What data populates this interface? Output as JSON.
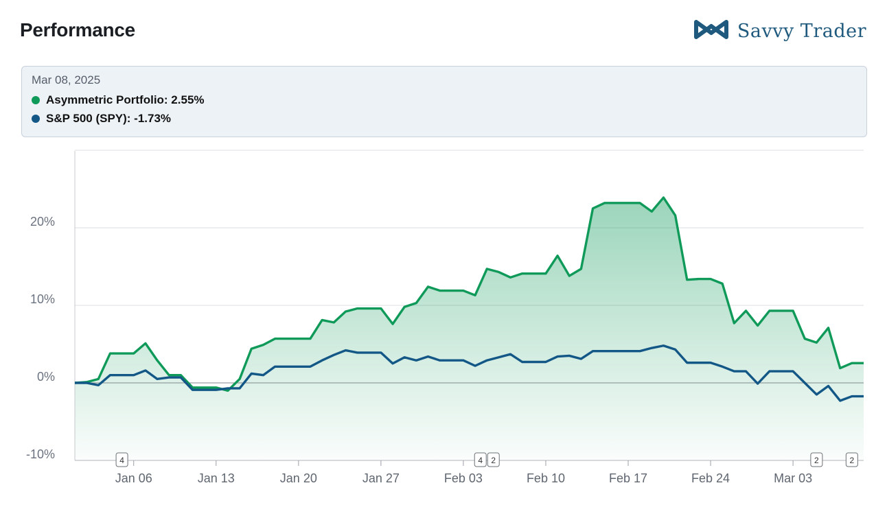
{
  "header": {
    "title": "Performance",
    "brand_name": "Savvy Trader",
    "brand_icon": "savvy-trader-logo-icon",
    "brand_color": "#1f5a7e"
  },
  "tooltip": {
    "date": "Mar 08, 2025",
    "rows": [
      {
        "label": "Asymmetric Portfolio: 2.55%",
        "color": "#109a5a"
      },
      {
        "label": "S&P 500 (SPY): -1.73%",
        "color": "#135787"
      }
    ]
  },
  "chart_data": {
    "type": "line",
    "x_start": "2025-01-01",
    "x_step_days": 1,
    "xticks": [
      "Jan 06",
      "Jan 13",
      "Jan 20",
      "Jan 27",
      "Feb 03",
      "Feb 10",
      "Feb 17",
      "Feb 24",
      "Mar 03"
    ],
    "yticks": [
      "20%",
      "10%",
      "0%",
      "-10%"
    ],
    "ylim": [
      -10,
      30
    ],
    "grid": true,
    "series": [
      {
        "name": "Asymmetric Portfolio",
        "color": "#109a5a",
        "area": true,
        "values": [
          0.0,
          0.1,
          0.5,
          3.8,
          3.8,
          3.8,
          5.1,
          2.9,
          1.0,
          1.0,
          -0.6,
          -0.6,
          -0.6,
          -1.0,
          0.5,
          4.4,
          4.9,
          5.7,
          5.7,
          5.7,
          5.7,
          8.1,
          7.8,
          9.2,
          9.6,
          9.6,
          9.6,
          7.6,
          9.8,
          10.3,
          12.4,
          11.9,
          11.9,
          11.9,
          11.3,
          14.7,
          14.3,
          13.6,
          14.1,
          14.1,
          14.1,
          16.4,
          13.8,
          14.7,
          22.5,
          23.2,
          23.2,
          23.2,
          23.2,
          22.1,
          23.9,
          21.6,
          13.3,
          13.4,
          13.4,
          12.8,
          7.7,
          9.3,
          7.4,
          9.3,
          9.3,
          9.3,
          5.7,
          5.2,
          7.1,
          1.9,
          2.55,
          2.55
        ]
      },
      {
        "name": "S&P 500 (SPY)",
        "color": "#135787",
        "area": false,
        "values": [
          0.0,
          0.0,
          -0.3,
          1.0,
          1.0,
          1.0,
          1.6,
          0.5,
          0.7,
          0.7,
          -0.9,
          -0.9,
          -0.9,
          -0.7,
          -0.7,
          1.2,
          1.0,
          2.1,
          2.1,
          2.1,
          2.1,
          2.9,
          3.6,
          4.2,
          3.9,
          3.9,
          3.9,
          2.5,
          3.3,
          2.9,
          3.4,
          2.9,
          2.9,
          2.9,
          2.2,
          2.9,
          3.3,
          3.7,
          2.7,
          2.7,
          2.7,
          3.4,
          3.5,
          3.1,
          4.1,
          4.1,
          4.1,
          4.1,
          4.1,
          4.5,
          4.8,
          4.3,
          2.6,
          2.6,
          2.6,
          2.1,
          1.5,
          1.5,
          -0.1,
          1.5,
          1.5,
          1.5,
          0.0,
          -1.5,
          -0.4,
          -2.3,
          -1.73,
          -1.73
        ]
      }
    ],
    "markers": [
      {
        "date": "2025-01-05",
        "labels": [
          "4"
        ]
      },
      {
        "date": "2025-02-05",
        "labels": [
          "4",
          "2"
        ]
      },
      {
        "date": "2025-03-05",
        "labels": [
          "2"
        ]
      },
      {
        "date": "2025-03-08",
        "labels": [
          "2"
        ]
      }
    ]
  }
}
